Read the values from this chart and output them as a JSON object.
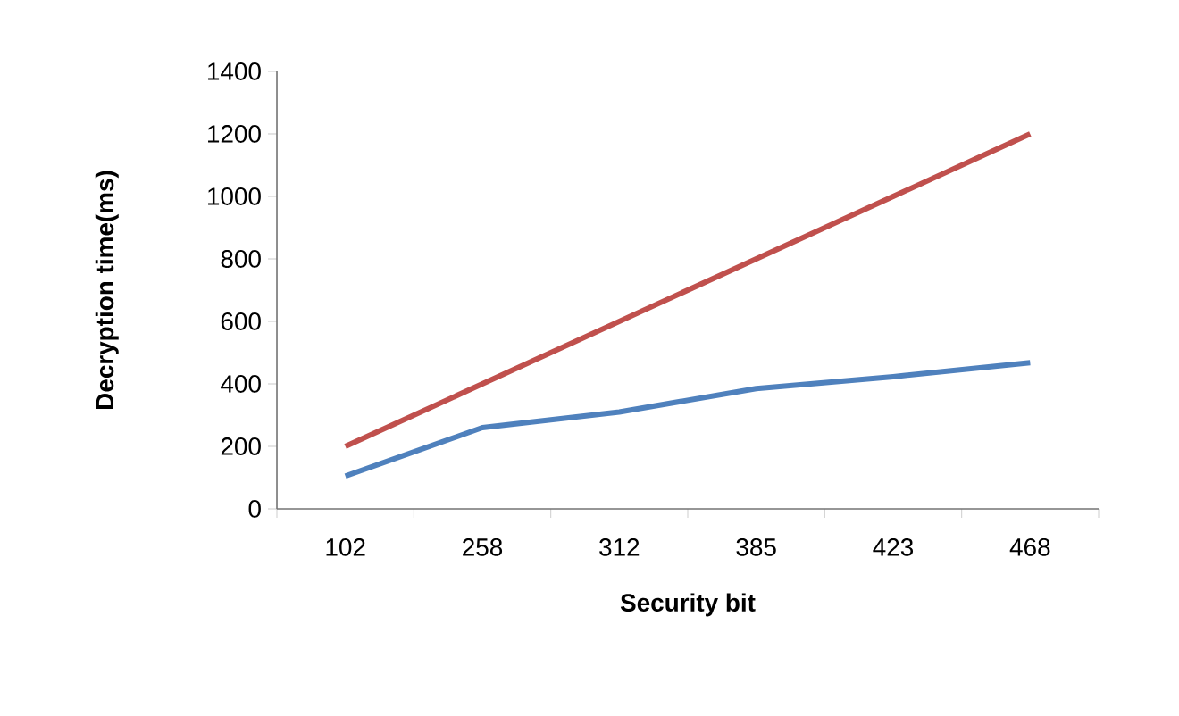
{
  "chart_data": {
    "type": "line",
    "xlabel": "Security bit",
    "ylabel": "Decryption time(ms)",
    "categories": [
      "102",
      "258",
      "312",
      "385",
      "423",
      "468"
    ],
    "series": [
      {
        "color": "#4f81bd",
        "values": [
          105,
          260,
          310,
          385,
          423,
          468
        ]
      },
      {
        "color": "#c0504d",
        "values": [
          200,
          400,
          600,
          800,
          1000,
          1200
        ]
      }
    ],
    "ylim": [
      0,
      1400
    ],
    "yticks": [
      0,
      200,
      400,
      600,
      800,
      1000,
      1200,
      1400
    ],
    "grid": false,
    "marker": "none",
    "line_style": "solid"
  }
}
